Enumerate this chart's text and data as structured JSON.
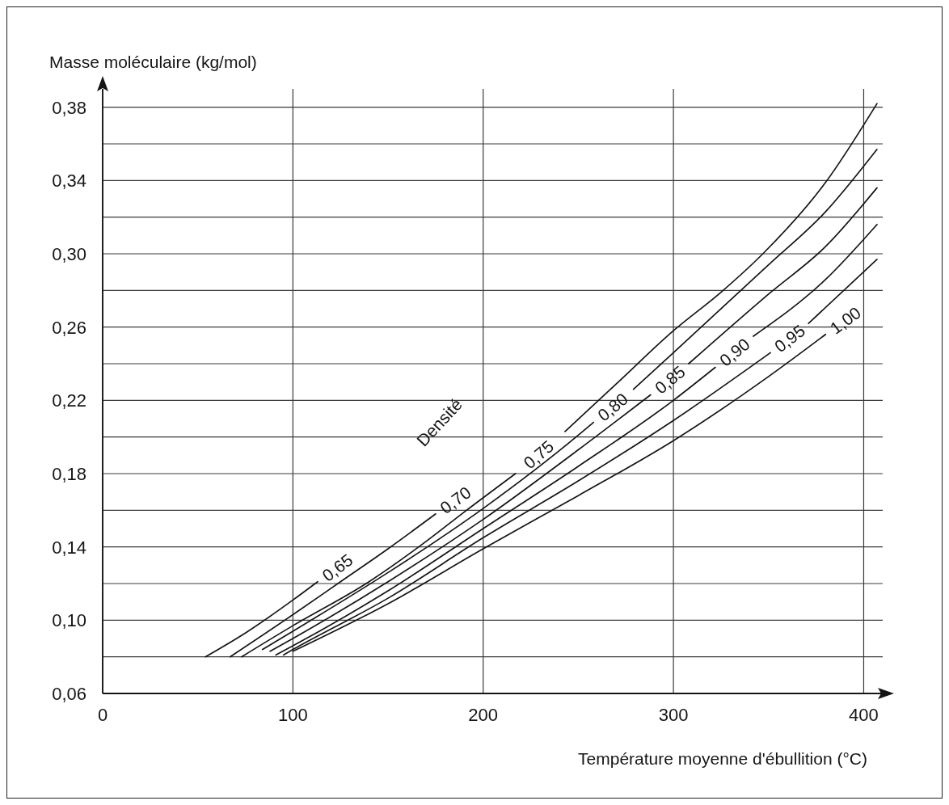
{
  "chart_data": {
    "type": "line",
    "xlabel": "Température moyenne d'ébullition (°C)",
    "ylabel": "Masse moléculaire (kg/mol)",
    "legend_title": "Densité",
    "xlim": [
      0,
      410
    ],
    "xticks": [
      0,
      100,
      200,
      300,
      400
    ],
    "ylim": [
      0.06,
      0.39
    ],
    "yticks": [
      {
        "value": 0.06,
        "label": "0,06"
      },
      {
        "value": 0.08,
        "label": null
      },
      {
        "value": 0.1,
        "label": "0,10"
      },
      {
        "value": 0.12,
        "label": null
      },
      {
        "value": 0.14,
        "label": "0,14"
      },
      {
        "value": 0.16,
        "label": null
      },
      {
        "value": 0.18,
        "label": "0,18"
      },
      {
        "value": 0.2,
        "label": null
      },
      {
        "value": 0.22,
        "label": "0,22"
      },
      {
        "value": 0.24,
        "label": null
      },
      {
        "value": 0.26,
        "label": "0,26"
      },
      {
        "value": 0.28,
        "label": null
      },
      {
        "value": 0.3,
        "label": "0,30"
      },
      {
        "value": 0.32,
        "label": null
      },
      {
        "value": 0.34,
        "label": "0,34"
      },
      {
        "value": 0.36,
        "label": null
      },
      {
        "value": 0.38,
        "label": "0,38"
      }
    ],
    "grid": true,
    "series": [
      {
        "name": "0,65",
        "color": "#151515",
        "x": [
          54,
          75,
          100,
          113
        ],
        "values": [
          0.08,
          0.093,
          0.111,
          0.121
        ]
      },
      {
        "name": "0,70",
        "color": "#151515",
        "x": [
          67,
          100,
          125,
          150,
          175
        ],
        "values": [
          0.08,
          0.103,
          0.121,
          0.139,
          0.158
        ]
      },
      {
        "name": "0,75",
        "color": "#151515",
        "x": [
          73,
          100,
          140,
          170,
          190,
          217,
          229,
          243,
          270,
          300,
          325,
          347,
          380,
          407
        ],
        "values": [
          0.08,
          0.097,
          0.121,
          0.143,
          0.159,
          0.18,
          null,
          0.203,
          0.229,
          0.258,
          0.279,
          0.3,
          0.339,
          0.382
        ]
      },
      {
        "name": "0,80",
        "color": "#151515",
        "x": [
          84,
          100,
          150,
          200,
          250,
          258,
          268,
          279,
          300,
          350,
          380,
          407
        ],
        "values": [
          0.084,
          0.094,
          0.126,
          0.161,
          0.201,
          0.208,
          null,
          0.226,
          0.246,
          0.294,
          0.323,
          0.357
        ]
      },
      {
        "name": "0,85",
        "color": "#151515",
        "x": [
          88,
          100,
          150,
          200,
          250,
          288,
          298,
          308,
          350,
          380,
          407
        ],
        "values": [
          0.083,
          0.09,
          0.121,
          0.155,
          0.193,
          0.223,
          null,
          0.24,
          0.278,
          0.304,
          0.336
        ]
      },
      {
        "name": "0,90",
        "color": "#151515",
        "x": [
          91,
          100,
          150,
          200,
          250,
          300,
          322,
          332,
          342,
          380,
          407
        ],
        "values": [
          0.081,
          0.086,
          0.116,
          0.15,
          0.184,
          0.22,
          0.238,
          null,
          0.255,
          0.286,
          0.316
        ]
      },
      {
        "name": "0,95",
        "color": "#151515",
        "x": [
          95,
          100,
          150,
          200,
          250,
          300,
          351,
          361,
          371,
          407
        ],
        "values": [
          0.081,
          0.084,
          0.112,
          0.145,
          0.176,
          0.209,
          0.246,
          null,
          0.262,
          0.297
        ]
      },
      {
        "name": "1,00",
        "color": "#151515",
        "x": [
          100,
          150,
          200,
          250,
          300,
          350,
          380
        ],
        "values": [
          0.083,
          0.109,
          0.139,
          0.168,
          0.198,
          0.233,
          0.256
        ]
      }
    ]
  }
}
